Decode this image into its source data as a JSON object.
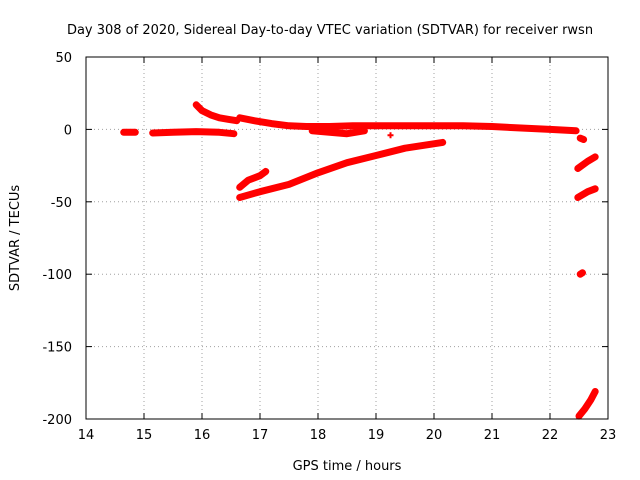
{
  "chart_data": {
    "type": "scatter",
    "title": "Day 308 of 2020, Sidereal Day-to-day VTEC variation (SDTVAR) for receiver rwsn",
    "xlabel": "GPS time / hours",
    "ylabel": "SDTVAR / TECUs",
    "xlim": [
      14,
      23
    ],
    "ylim": [
      -200,
      50
    ],
    "xticks": [
      14,
      15,
      16,
      17,
      18,
      19,
      20,
      21,
      22,
      23
    ],
    "yticks": [
      50,
      0,
      -50,
      -100,
      -150,
      -200
    ],
    "grid": true,
    "color": "#ff0000",
    "series": [
      {
        "name": "seg-a",
        "x": [
          14.65,
          14.85
        ],
        "y": [
          -2,
          -2
        ]
      },
      {
        "name": "seg-b",
        "x": [
          15.15,
          15.5,
          15.9,
          16.3,
          16.55
        ],
        "y": [
          -2.5,
          -2,
          -1.5,
          -2,
          -3
        ]
      },
      {
        "name": "seg-c",
        "x": [
          15.9,
          16.0,
          16.15,
          16.3,
          16.45,
          16.6
        ],
        "y": [
          17,
          13,
          10,
          8,
          7,
          6
        ]
      },
      {
        "name": "seg-d",
        "x": [
          16.65,
          16.9,
          17.2,
          17.5,
          17.8,
          18.2,
          18.6,
          19.0,
          19.5,
          20.0,
          20.5,
          21.0,
          21.5,
          22.0,
          22.45
        ],
        "y": [
          8,
          6,
          4,
          2.5,
          2,
          2,
          2.5,
          2.5,
          2.5,
          2.5,
          2.5,
          2,
          1,
          0,
          -1
        ]
      },
      {
        "name": "seg-e",
        "x": [
          17.9,
          18.2,
          18.5,
          18.8
        ],
        "y": [
          -1,
          -2,
          -3,
          -1
        ]
      },
      {
        "name": "seg-f",
        "x": [
          16.65,
          16.8,
          17.0,
          17.1
        ],
        "y": [
          -40,
          -35,
          -32,
          -29
        ]
      },
      {
        "name": "seg-g",
        "x": [
          16.65,
          17.0,
          17.5,
          18.0,
          18.5,
          19.0,
          19.5,
          20.15
        ],
        "y": [
          -47,
          -43,
          -38,
          -30,
          -23,
          -18,
          -13,
          -9
        ]
      },
      {
        "name": "seg-h",
        "x": [
          22.52,
          22.58
        ],
        "y": [
          -6,
          -7
        ]
      },
      {
        "name": "seg-i",
        "x": [
          22.48,
          22.65,
          22.78
        ],
        "y": [
          -27,
          -22,
          -19
        ]
      },
      {
        "name": "seg-j",
        "x": [
          22.48,
          22.65,
          22.78
        ],
        "y": [
          -47,
          -43,
          -41
        ]
      },
      {
        "name": "seg-k",
        "x": [
          22.52,
          22.56
        ],
        "y": [
          -100,
          -99
        ]
      },
      {
        "name": "seg-l",
        "x": [
          22.5,
          22.6,
          22.7,
          22.78
        ],
        "y": [
          -198,
          -193,
          -187,
          -181
        ]
      },
      {
        "name": "pt-1",
        "x": [
          19.25
        ],
        "y": [
          -4
        ]
      }
    ]
  }
}
